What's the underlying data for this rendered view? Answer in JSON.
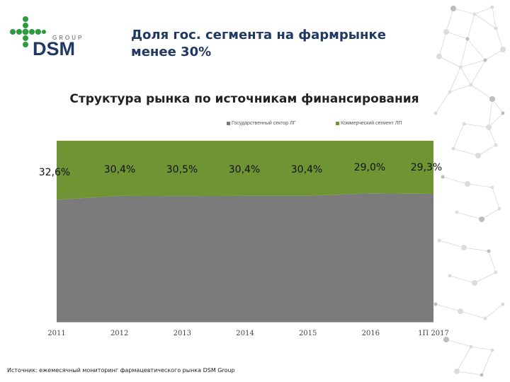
{
  "logo": {
    "brand_small": "GROUP",
    "brand_large": "DSM",
    "accent": "#2e9b3e"
  },
  "headline": {
    "line1": "Доля гос. сегмента на фармрынке",
    "line2": "менее 30%"
  },
  "source": "Источник: ежемесячный мониторинг фармацевтического рынка DSM Group",
  "chart_data": {
    "type": "area",
    "stacking": "percent",
    "title": "Структура рынка по источникам финансирования",
    "categories": [
      "2011",
      "2012",
      "2013",
      "2014",
      "2015",
      "2016",
      "1П 2017"
    ],
    "series": [
      {
        "name": "Государственный сектор ЛГ",
        "color": "#7b7b7b",
        "values": [
          67.4,
          69.6,
          69.5,
          69.6,
          69.6,
          71.0,
          70.7
        ]
      },
      {
        "name": "Коммерческий сегмент ЛП",
        "color": "#6f9434",
        "values": [
          32.6,
          30.4,
          30.5,
          30.4,
          30.4,
          29.0,
          29.3
        ]
      }
    ],
    "data_labels": [
      "32,6%",
      "30,4%",
      "30,5%",
      "30,4%",
      "30,4%",
      "29,0%",
      "29,3%"
    ],
    "ylim": [
      0,
      100
    ],
    "grid": false,
    "legend_position": "top-right"
  }
}
